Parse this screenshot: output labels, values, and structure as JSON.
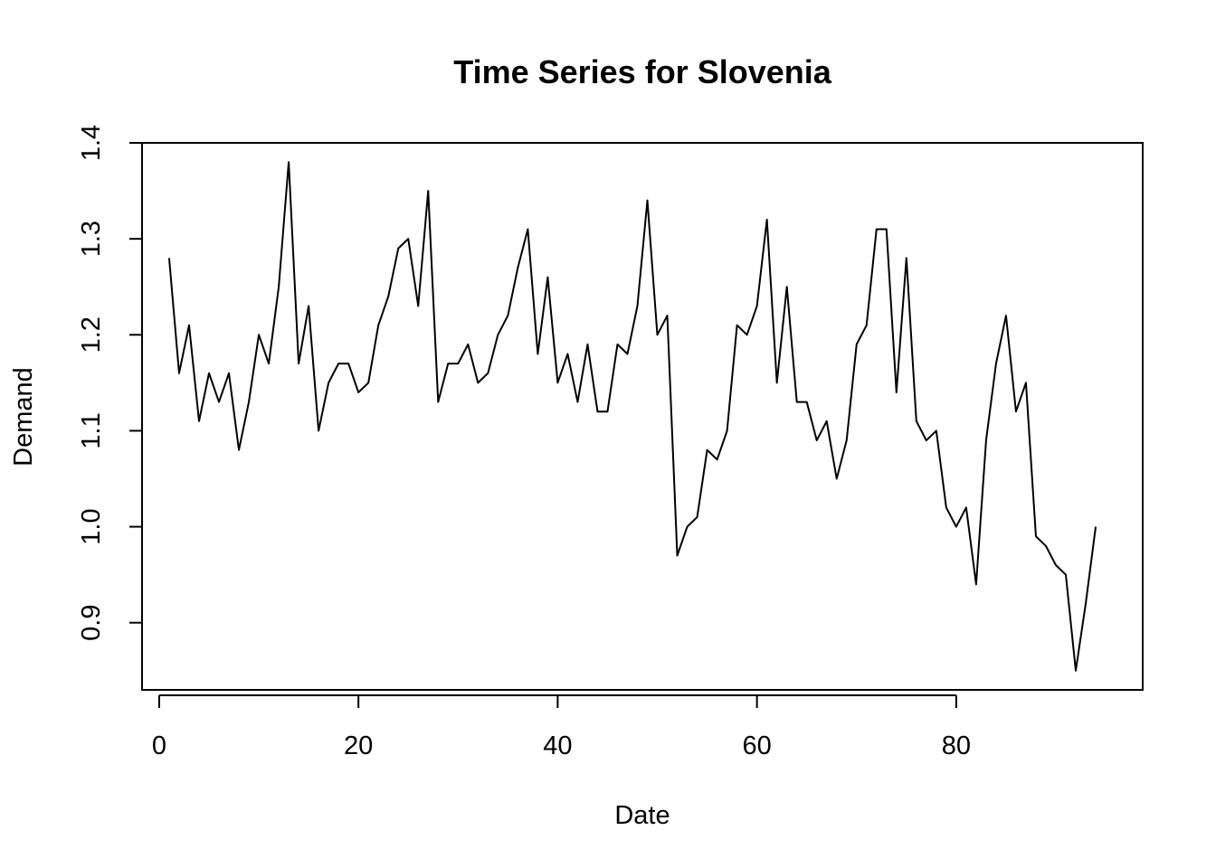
{
  "chart_data": {
    "type": "line",
    "title": "Time Series for Slovenia",
    "xlabel": "Date",
    "ylabel": "Demand",
    "xlim": [
      -1.72,
      98.72
    ],
    "ylim": [
      0.83,
      1.4
    ],
    "xticks": [
      0,
      20,
      40,
      60,
      80
    ],
    "yticks": [
      0.9,
      1.0,
      1.1,
      1.2,
      1.3,
      1.4
    ],
    "xtick_labels": [
      "0",
      "20",
      "40",
      "60",
      "80"
    ],
    "ytick_labels": [
      "0.9",
      "1.0",
      "1.1",
      "1.2",
      "1.3",
      "1.4"
    ],
    "grid": false,
    "legend": "none",
    "line_color": "#000000",
    "series": [
      {
        "x": [
          1,
          2,
          3,
          4,
          5,
          6,
          7,
          8,
          9,
          10,
          11,
          12,
          13,
          14,
          15,
          16,
          17,
          18,
          19,
          20,
          21,
          22,
          23,
          24,
          25,
          26,
          27,
          28,
          29,
          30,
          31,
          32,
          33,
          34,
          35,
          36,
          37,
          38,
          39,
          40,
          41,
          42,
          43,
          44,
          45,
          46,
          47,
          48,
          49,
          50,
          51,
          52,
          53,
          54,
          55,
          56,
          57,
          58,
          59,
          60,
          61,
          62,
          63,
          64,
          65,
          66,
          67,
          68,
          69,
          70,
          71,
          72,
          73,
          74,
          75,
          76,
          77,
          78,
          79,
          80,
          81,
          82,
          83,
          84,
          85,
          86,
          87,
          88,
          89,
          90,
          91,
          92,
          93,
          94
        ],
        "values": [
          1.28,
          1.16,
          1.21,
          1.11,
          1.16,
          1.13,
          1.16,
          1.08,
          1.13,
          1.2,
          1.17,
          1.25,
          1.38,
          1.17,
          1.23,
          1.1,
          1.15,
          1.17,
          1.17,
          1.14,
          1.15,
          1.21,
          1.24,
          1.29,
          1.3,
          1.23,
          1.35,
          1.13,
          1.17,
          1.17,
          1.19,
          1.15,
          1.16,
          1.2,
          1.22,
          1.27,
          1.31,
          1.18,
          1.26,
          1.15,
          1.18,
          1.13,
          1.19,
          1.12,
          1.12,
          1.19,
          1.18,
          1.23,
          1.34,
          1.2,
          1.22,
          0.97,
          1.0,
          1.01,
          1.08,
          1.07,
          1.1,
          1.21,
          1.2,
          1.23,
          1.32,
          1.15,
          1.25,
          1.13,
          1.13,
          1.09,
          1.11,
          1.05,
          1.09,
          1.19,
          1.21,
          1.31,
          1.31,
          1.14,
          1.28,
          1.11,
          1.09,
          1.1,
          1.02,
          1.0,
          1.02,
          0.94,
          1.09,
          1.17,
          1.22,
          1.12,
          1.15,
          0.99,
          0.98,
          0.96,
          0.95,
          0.85,
          0.92,
          1.0
        ]
      }
    ]
  }
}
